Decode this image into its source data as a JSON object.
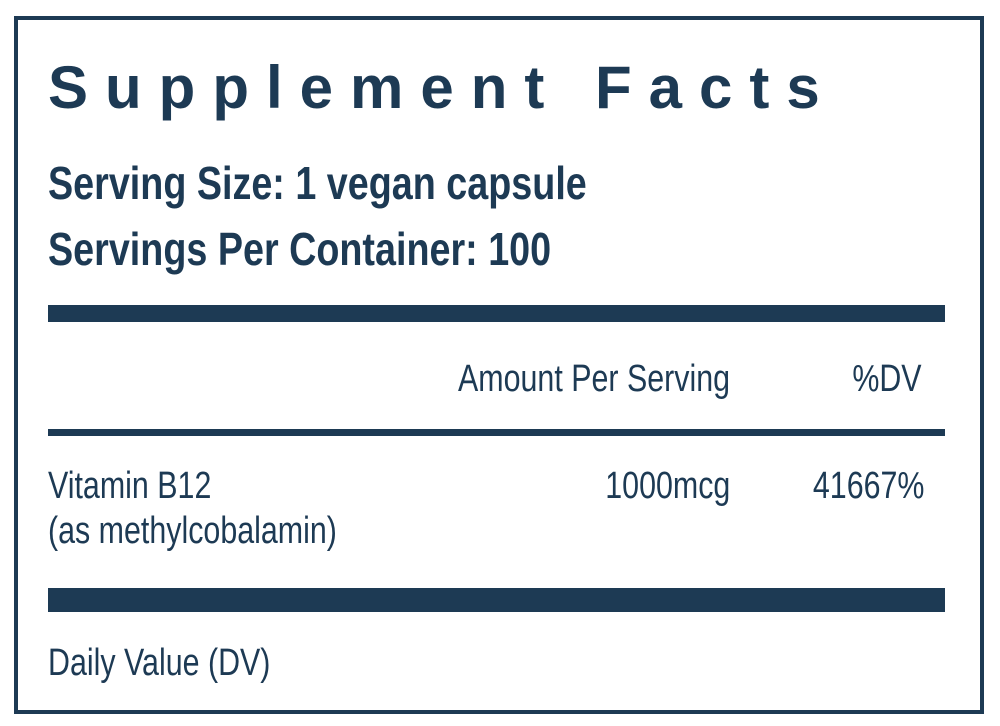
{
  "header": {
    "title": "Supplement Facts",
    "serving_size": "Serving Size: 1 vegan capsule",
    "servings_per_container": "Servings Per Container: 100"
  },
  "table": {
    "columns": [
      "Amount Per Serving",
      "%DV"
    ],
    "rows": [
      {
        "name": "Vitamin B12",
        "source": "(as methylcobalamin)",
        "amount": "1000mcg",
        "dv": "41667%"
      }
    ]
  },
  "footer": {
    "note": "Daily Value (DV)"
  }
}
